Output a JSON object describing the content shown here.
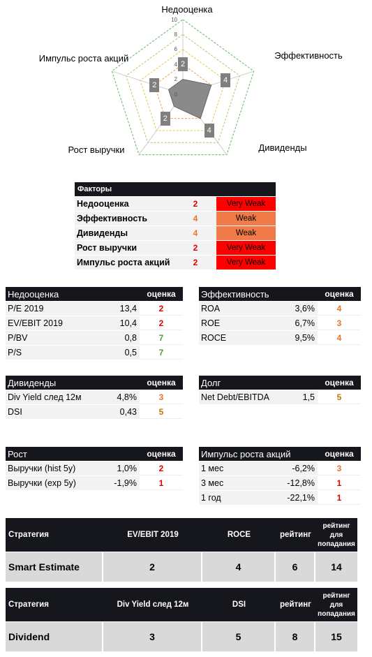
{
  "chart_data": {
    "type": "radar",
    "categories": [
      "Недооценка",
      "Эффективность",
      "Дивиденды",
      "Рост выручки",
      "Импульс роста акций"
    ],
    "values": [
      2,
      4,
      4,
      2,
      2
    ],
    "ylim": [
      0,
      10
    ],
    "yticks": [
      0,
      2,
      4,
      6,
      8,
      10
    ],
    "color": "#8a8a8a",
    "grid_colors": [
      "#bfbfbf",
      "#e05050",
      "#f0a040",
      "#e8c840",
      "#a0d070",
      "#60b860"
    ]
  },
  "factors": {
    "header": "Факторы",
    "rows": [
      [
        "Недооценка",
        2,
        "Very Weak"
      ],
      [
        "Эффективность",
        4,
        "Weak"
      ],
      [
        "Дивиденды",
        4,
        "Weak"
      ],
      [
        "Рост выручки",
        2,
        "Very Weak"
      ],
      [
        "Импульс роста акций",
        2,
        "Very Weak"
      ]
    ]
  },
  "tables": [
    {
      "title": "Недооценка",
      "score_header": "оценка",
      "rows": [
        [
          "P/E 2019",
          "13,4",
          2
        ],
        [
          "EV/EBIT 2019",
          "10,4",
          2
        ],
        [
          "P/BV",
          "0,8",
          7
        ],
        [
          "P/S",
          "0,5",
          7
        ]
      ]
    },
    {
      "title": "Эффективность",
      "score_header": "оценка",
      "rows": [
        [
          "ROA",
          "3,6%",
          4
        ],
        [
          "ROE",
          "6,7%",
          3
        ],
        [
          "ROCE",
          "9,5%",
          4
        ]
      ]
    },
    {
      "title": "Дивиденды",
      "score_header": "оценка",
      "rows": [
        [
          "Div Yield след 12м",
          "4,8%",
          3
        ],
        [
          "DSI",
          "0,43",
          5
        ]
      ]
    },
    {
      "title": "Долг",
      "score_header": "оценка",
      "rows": [
        [
          "Net Debt/EBITDA",
          "1,5",
          5
        ]
      ]
    },
    {
      "title": "Рост",
      "score_header": "оценка",
      "rows": [
        [
          "Выручки (hist 5y)",
          "1,0%",
          2
        ],
        [
          "Выручки (exp 5y)",
          "-1,9%",
          1
        ]
      ]
    },
    {
      "title": "Импульс роста акций",
      "score_header": "оценка",
      "rows": [
        [
          "1 мес",
          "-6,2%",
          3
        ],
        [
          "3 мес",
          "-12,8%",
          1
        ],
        [
          "1 год",
          "-22,1%",
          1
        ]
      ]
    }
  ],
  "strategies": [
    {
      "headers": [
        "Стратегия",
        "EV/EBIT 2019",
        "ROCE",
        "рейтинг",
        "рейтинг для попадания"
      ],
      "row": [
        "Smart Estimate",
        2,
        4,
        6,
        14
      ]
    },
    {
      "headers": [
        "Стратегия",
        "Div Yield след 12м",
        "DSI",
        "рейтинг",
        "рейтинг для попадания"
      ],
      "row": [
        "Dividend",
        3,
        5,
        8,
        15
      ]
    }
  ]
}
